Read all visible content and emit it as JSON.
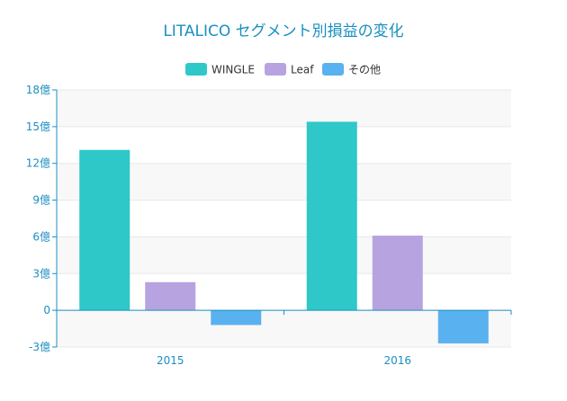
{
  "chart_data": {
    "type": "bar",
    "title": "LITALICO セグメント別損益の変化",
    "categories": [
      "2015",
      "2016"
    ],
    "series": [
      {
        "name": "WINGLE",
        "values": [
          13.1,
          15.4
        ],
        "color": "#2ec8c9"
      },
      {
        "name": "Leaf",
        "values": [
          2.3,
          6.1
        ],
        "color": "#b7a3e0"
      },
      {
        "name": "その他",
        "values": [
          -1.2,
          -2.7
        ],
        "color": "#5ab1ef"
      }
    ],
    "ylim": [
      -3,
      18
    ],
    "yticks": [
      -3,
      0,
      3,
      6,
      9,
      12,
      15,
      18
    ],
    "ytick_suffix": "億",
    "ytick_labels": [
      "-3億",
      "0",
      "3億",
      "6億",
      "9億",
      "12億",
      "15億",
      "18億"
    ],
    "xlabel": "",
    "ylabel": "",
    "legend_position": "top-center",
    "grid": true,
    "axis_color": "#1a8fc1"
  }
}
